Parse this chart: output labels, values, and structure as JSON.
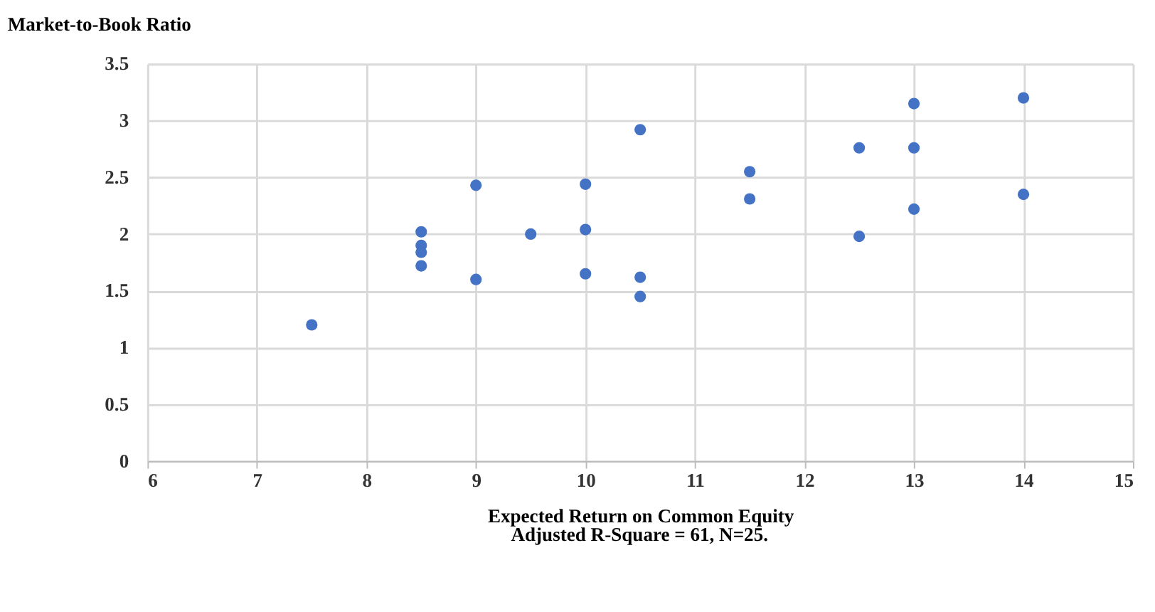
{
  "chart_data": {
    "type": "scatter",
    "ylabel": "Market-to-Book Ratio",
    "xlabel": "Expected Return on Common Equity",
    "annotations": [
      "Adjusted R-Square = 61, N=25."
    ],
    "x": [
      7.5,
      8.5,
      8.5,
      8.5,
      8.5,
      9,
      9,
      9.5,
      10,
      10,
      10,
      10.5,
      10.5,
      10.5,
      11.5,
      11.5,
      12.5,
      12.5,
      13,
      13,
      13,
      14,
      14
    ],
    "series": [
      {
        "color": "#4472c4",
        "values": [
          1.2,
          2.02,
          1.9,
          1.84,
          1.72,
          2.43,
          1.6,
          2.0,
          2.44,
          2.04,
          1.65,
          2.92,
          1.62,
          1.45,
          2.55,
          2.31,
          2.76,
          1.98,
          3.15,
          2.76,
          2.22,
          3.2,
          2.35
        ]
      }
    ],
    "xlim": [
      6,
      15
    ],
    "xticks": [
      6,
      7,
      8,
      9,
      10,
      11,
      12,
      13,
      14,
      15
    ],
    "ylim": [
      0,
      3.5
    ],
    "yticks": [
      0,
      0.5,
      1,
      1.5,
      2,
      2.5,
      3,
      3.5
    ],
    "grid": true,
    "marker": "circle"
  }
}
